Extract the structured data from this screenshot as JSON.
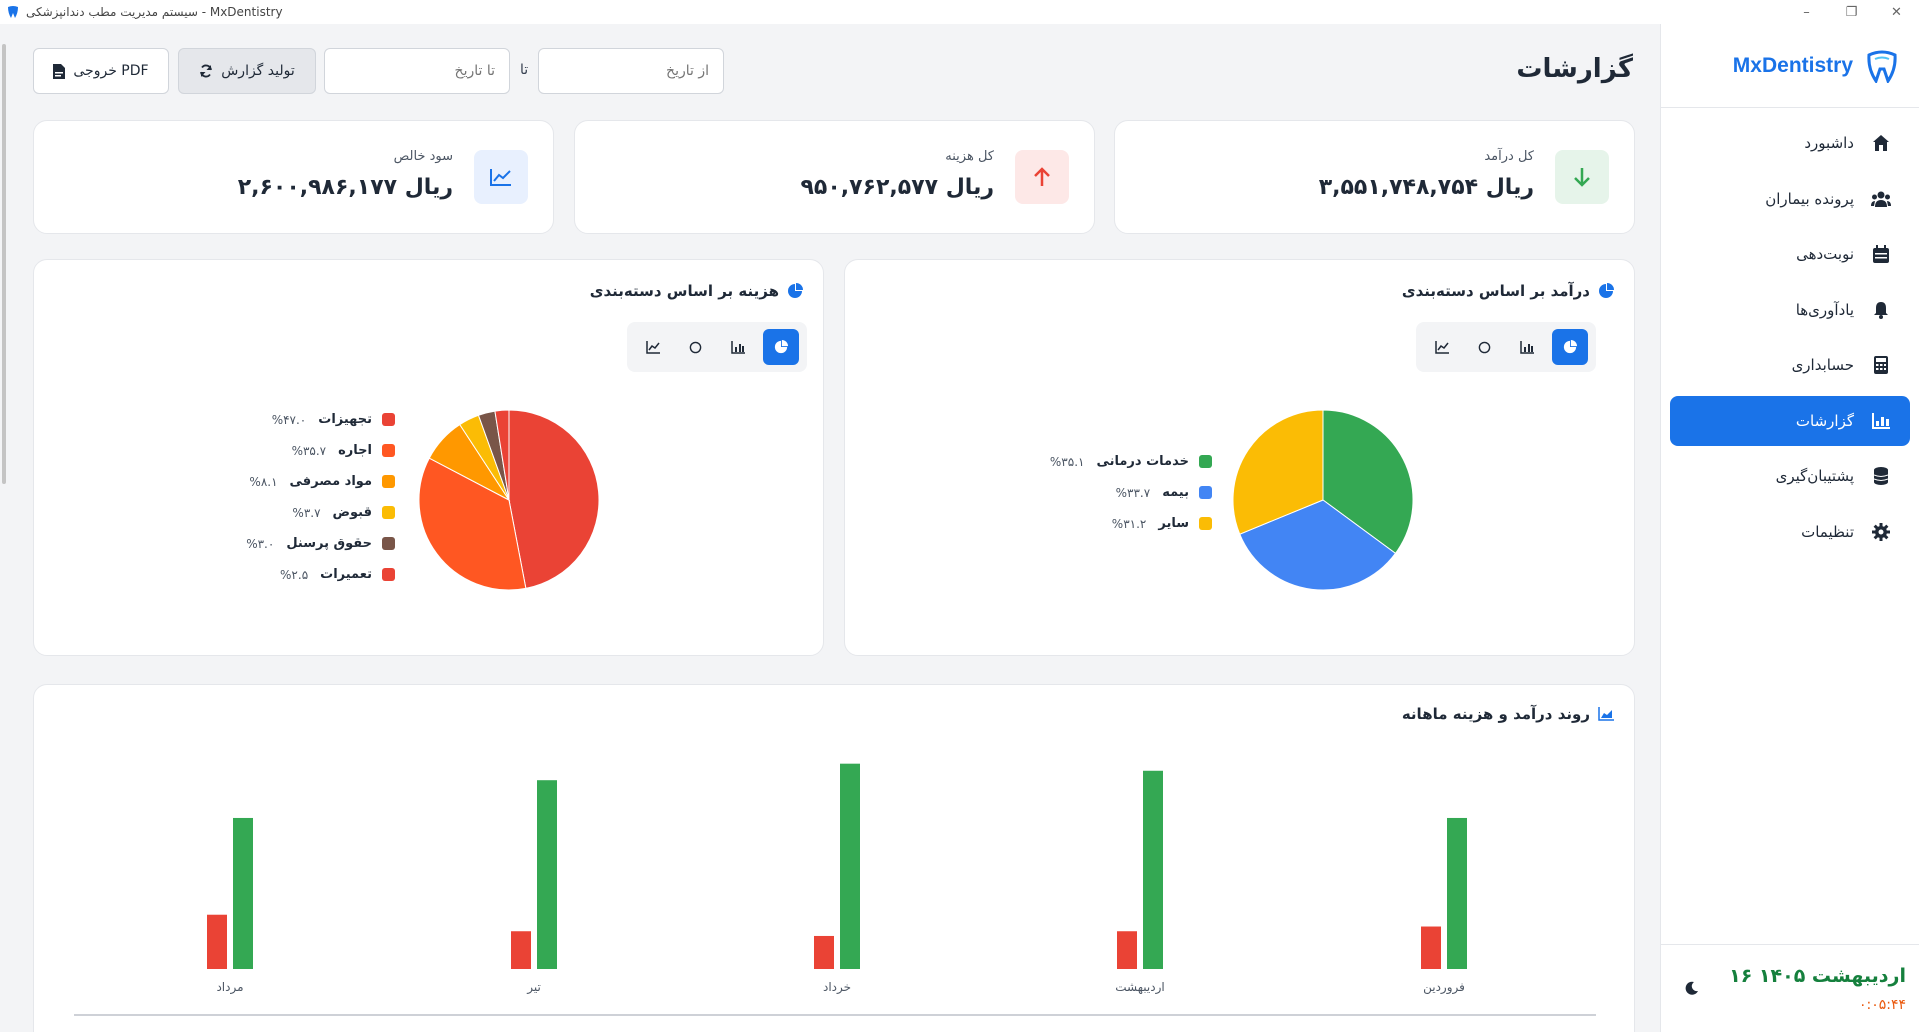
{
  "window": {
    "title": "سیستم مدیریت مطب دندانپزشکی - MxDentistry"
  },
  "sidebar": {
    "brand": "MxDentistry",
    "items": [
      {
        "label": "داشبورد",
        "icon": "home-icon",
        "active": false
      },
      {
        "label": "پرونده بیماران",
        "icon": "users-icon",
        "active": false
      },
      {
        "label": "نوبت‌دهی",
        "icon": "calendar-icon",
        "active": false
      },
      {
        "label": "یادآوری‌ها",
        "icon": "bell-icon",
        "active": false
      },
      {
        "label": "حسابداری",
        "icon": "calculator-icon",
        "active": false
      },
      {
        "label": "گزارشات",
        "icon": "chart-icon",
        "active": true
      },
      {
        "label": "پشتیبان‌گیری",
        "icon": "database-icon",
        "active": false
      },
      {
        "label": "تنظیمات",
        "icon": "gear-icon",
        "active": false
      }
    ],
    "date": "۱۶ اردیبهشت ۱۴۰۵",
    "time": "۰:۰۵:۴۴"
  },
  "header": {
    "title": "گزارشات",
    "from_placeholder": "از تاریخ",
    "to_label": "تا",
    "to_placeholder": "تا تاریخ",
    "generate_label": "تولید گزارش",
    "pdf_label": "خروجی PDF"
  },
  "stats": {
    "income_label": "کل درآمد",
    "income_value": "۳,۵۵۱,۷۴۸,۷۵۴ ریال",
    "expense_label": "کل هزینه",
    "expense_value": "۹۵۰,۷۶۲,۵۷۷ ریال",
    "profit_label": "سود خالص",
    "profit_value": "۲,۶۰۰,۹۸۶,۱۷۷ ریال",
    "colors": {
      "income": "#34a853",
      "expense": "#ea4335",
      "profit": "#1a73e8"
    }
  },
  "income_chart": {
    "title": "درآمد بر اساس دسته‌بندی",
    "legend": [
      {
        "label": "خدمات درمانی",
        "pct": "%۳۵.۱"
      },
      {
        "label": "بیمه",
        "pct": "%۳۳.۷"
      },
      {
        "label": "سایر",
        "pct": "%۳۱.۲"
      }
    ]
  },
  "expense_chart": {
    "title": "هزینه بر اساس دسته‌بندی",
    "legend": [
      {
        "label": "تجهیزات",
        "pct": "%۴۷.۰"
      },
      {
        "label": "اجاره",
        "pct": "%۳۵.۷"
      },
      {
        "label": "مواد مصرفی",
        "pct": "%۸.۱"
      },
      {
        "label": "قبوض",
        "pct": "%۳.۷"
      },
      {
        "label": "حقوق پرسنل",
        "pct": "%۳.۰"
      },
      {
        "label": "تعمیرات",
        "pct": "%۲.۵"
      }
    ]
  },
  "trend_chart": {
    "title": "روند درآمد و هزینه ماهانه"
  },
  "chart_data": [
    {
      "type": "pie",
      "categories": [
        "خدمات درمانی",
        "بیمه",
        "سایر"
      ],
      "values": [
        35.1,
        33.7,
        31.2
      ],
      "colors": [
        "#34a853",
        "#4285f4",
        "#fbbc05"
      ],
      "title": "درآمد بر اساس دسته‌بندی"
    },
    {
      "type": "pie",
      "categories": [
        "تجهیزات",
        "اجاره",
        "مواد مصرفی",
        "قبوض",
        "حقوق پرسنل",
        "تعمیرات"
      ],
      "values": [
        47.0,
        35.7,
        8.1,
        3.7,
        3.0,
        2.5
      ],
      "colors": [
        "#ea4335",
        "#ff5722",
        "#ff9800",
        "#fbbc05",
        "#795548",
        "#ea4335"
      ],
      "title": "هزینه بر اساس دسته‌بندی"
    },
    {
      "type": "bar",
      "title": "روند درآمد و هزینه ماهانه",
      "categories": [
        "فروردین",
        "اردیبهشت",
        "خرداد",
        "تیر",
        "مرداد"
      ],
      "series": [
        {
          "color": "#34a853",
          "values": [
            0.64,
            0.84,
            0.87,
            0.8,
            0.64
          ]
        },
        {
          "color": "#ea4335",
          "values": [
            0.18,
            0.16,
            0.14,
            0.16,
            0.23
          ]
        }
      ],
      "ylim": [
        0,
        1
      ]
    }
  ]
}
